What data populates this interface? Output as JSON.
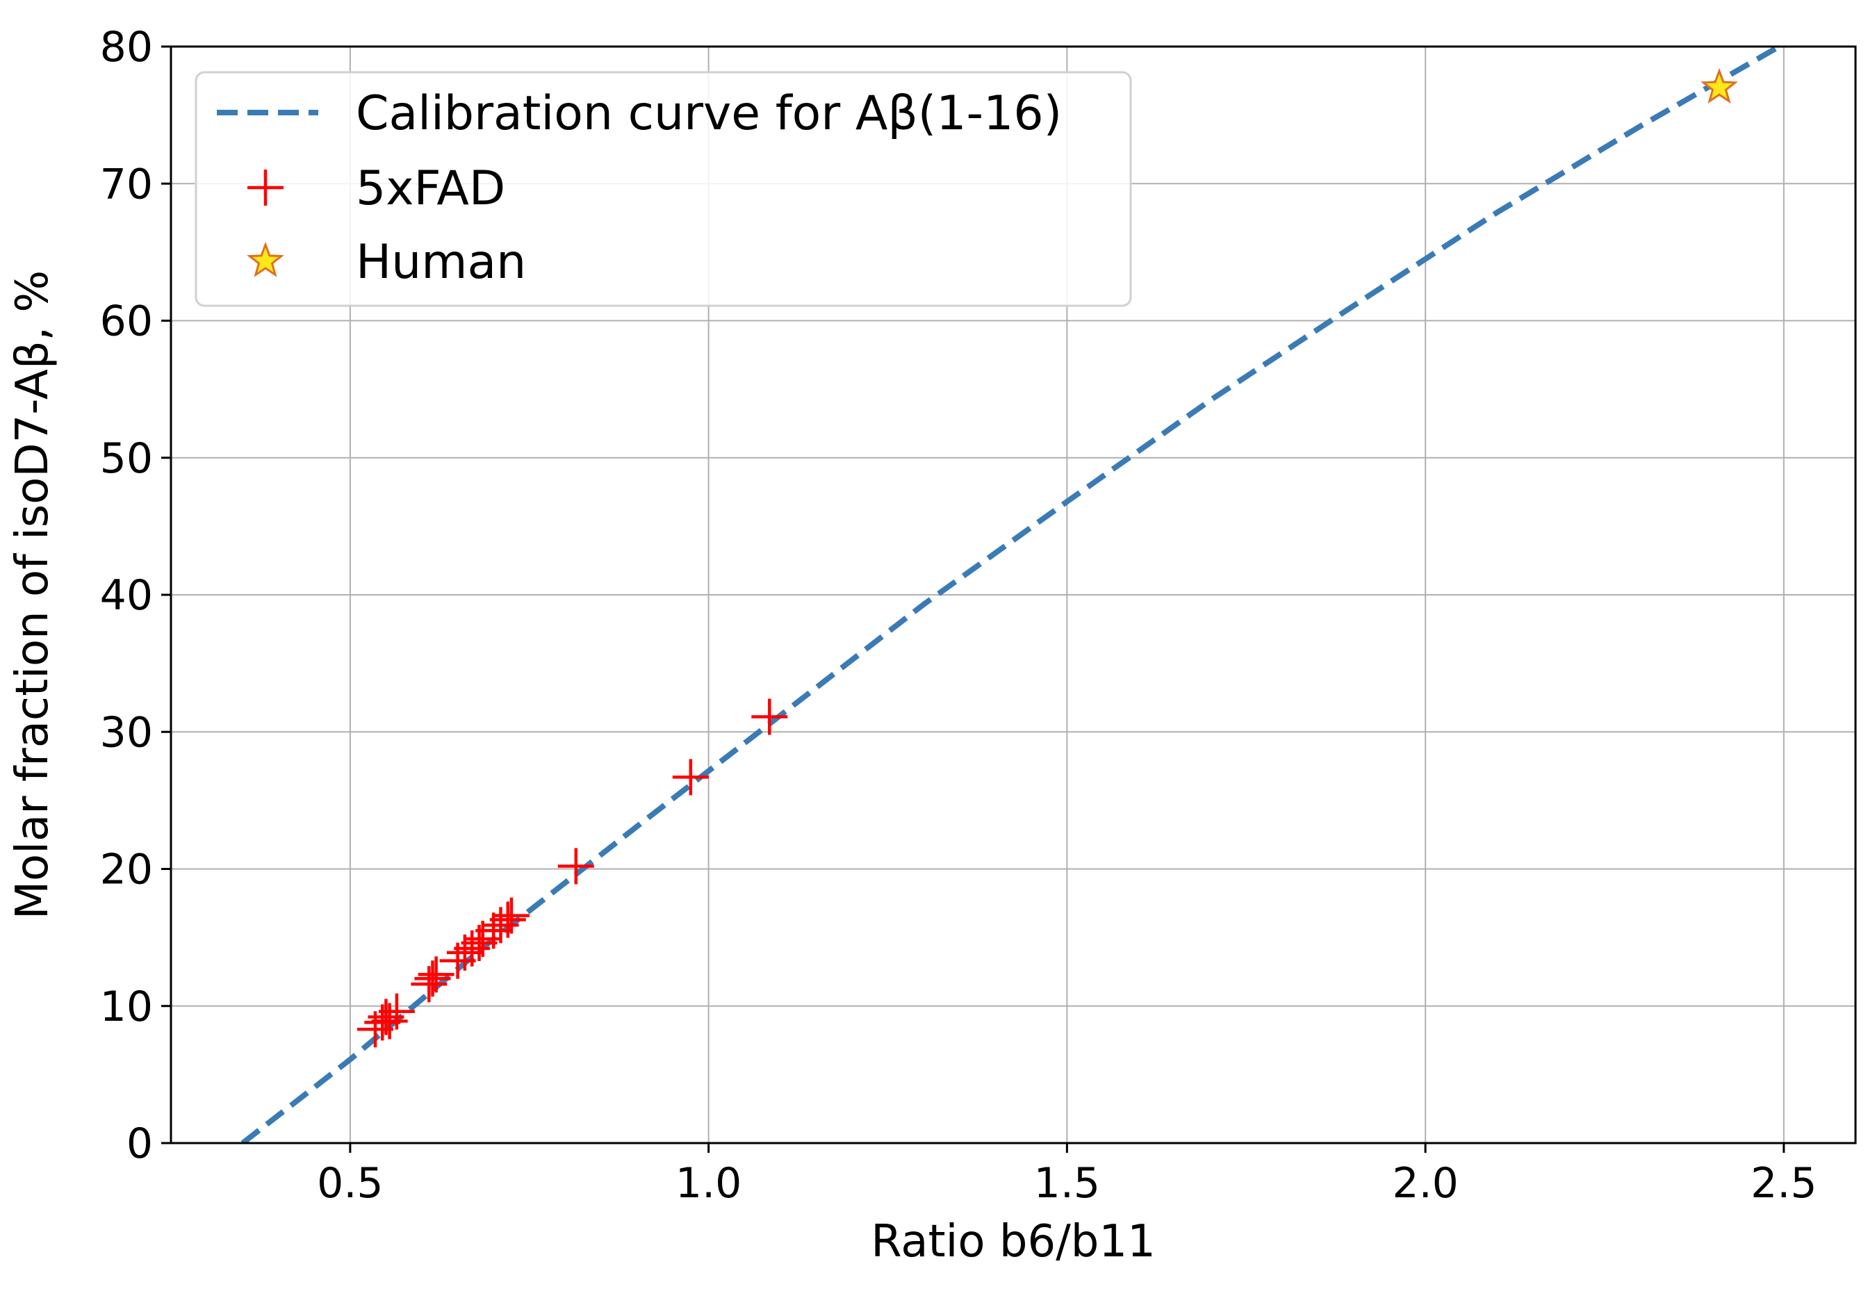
{
  "chart_data": {
    "type": "scatter",
    "title": "",
    "xlabel": "Ratio b6/b11",
    "ylabel": "Molar fraction of isoD7-Aβ, %",
    "xlim": [
      0.25,
      2.6
    ],
    "ylim": [
      0,
      80
    ],
    "x_ticks": [
      "0.5",
      "1.0",
      "1.5",
      "2.0",
      "2.5"
    ],
    "y_ticks": [
      "0",
      "10",
      "20",
      "30",
      "40",
      "50",
      "60",
      "70",
      "80"
    ],
    "grid": true,
    "legend_position": "upper-left",
    "colors": {
      "curve": "#3a7bb6",
      "fad": "#ff0000",
      "human_fill": "#ffe81a",
      "human_edge": "#e07020"
    },
    "series": [
      {
        "name": "Calibration curve for Aβ(1-16)",
        "kind": "line",
        "style": "dashed",
        "x": [
          0.35,
          0.5,
          0.7,
          0.9,
          1.1,
          1.3,
          1.5,
          1.7,
          1.9,
          2.1,
          2.3,
          2.5
        ],
        "y": [
          0.0,
          6.1,
          14.9,
          23.1,
          31.2,
          39.3,
          46.8,
          54.2,
          61.1,
          67.9,
          74.2,
          80.2
        ]
      },
      {
        "name": "5xFAD",
        "kind": "scatter",
        "marker": "plus",
        "x": [
          0.535,
          0.545,
          0.55,
          0.555,
          0.565,
          0.61,
          0.615,
          0.62,
          0.65,
          0.66,
          0.67,
          0.68,
          0.685,
          0.7,
          0.71,
          0.72,
          0.725,
          0.815,
          0.975,
          1.085
        ],
        "y": [
          8.3,
          8.8,
          9.2,
          8.9,
          9.6,
          11.6,
          12.0,
          12.3,
          13.3,
          13.9,
          14.2,
          14.6,
          14.9,
          15.5,
          15.9,
          16.3,
          16.6,
          20.2,
          26.7,
          31.1
        ]
      },
      {
        "name": "Human",
        "kind": "scatter",
        "marker": "star",
        "x": [
          2.41
        ],
        "y": [
          77.0
        ]
      }
    ]
  }
}
